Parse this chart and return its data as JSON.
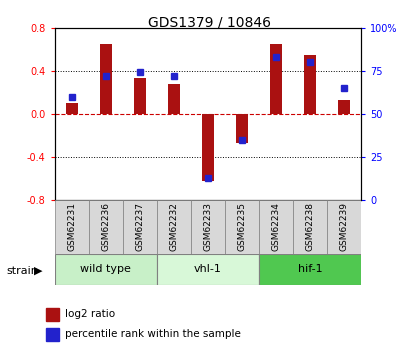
{
  "title": "GDS1379 / 10846",
  "samples": [
    "GSM62231",
    "GSM62236",
    "GSM62237",
    "GSM62232",
    "GSM62233",
    "GSM62235",
    "GSM62234",
    "GSM62238",
    "GSM62239"
  ],
  "log2_ratio": [
    0.1,
    0.65,
    0.33,
    0.28,
    -0.62,
    -0.27,
    0.65,
    0.55,
    0.13
  ],
  "percentile_rank": [
    60,
    72,
    74,
    72,
    13,
    35,
    83,
    80,
    65
  ],
  "groups": [
    {
      "label": "wild type",
      "start": 0,
      "end": 3,
      "color": "#c8f0c8"
    },
    {
      "label": "vhl-1",
      "start": 3,
      "end": 6,
      "color": "#d8f8d8"
    },
    {
      "label": "hif-1",
      "start": 6,
      "end": 9,
      "color": "#50c850"
    }
  ],
  "ylim_left": [
    -0.8,
    0.8
  ],
  "ylim_right": [
    0,
    100
  ],
  "yticks_left": [
    -0.8,
    -0.4,
    0.0,
    0.4,
    0.8
  ],
  "yticks_right": [
    0,
    25,
    50,
    75,
    100
  ],
  "yticks_right_labels": [
    "0",
    "25",
    "50",
    "75",
    "100%"
  ],
  "bar_color": "#aa1111",
  "dot_color": "#2222cc",
  "zero_line_color": "#cc0000",
  "grid_color": "#000000",
  "bg_color": "#d8d8d8",
  "plot_bg": "#ffffff",
  "strain_label": "strain",
  "legend_log2": "log2 ratio",
  "legend_pct": "percentile rank within the sample"
}
